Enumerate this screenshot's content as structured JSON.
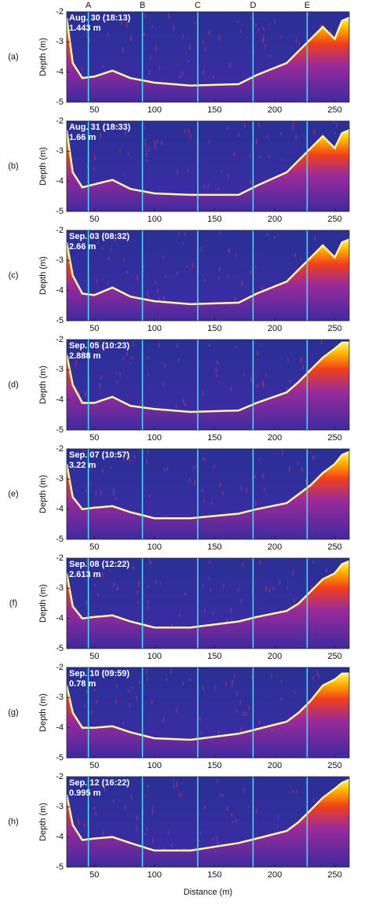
{
  "chart_data": [
    {
      "type": "echogram",
      "panel_label": "(a)",
      "annotations": [
        "Aug. 30 (18:13)",
        "1.443 m"
      ],
      "ylabel": "Depth (m)",
      "xlim": [
        27,
        262
      ],
      "ylim": [
        -5,
        -2
      ],
      "yticks": [
        -5,
        -4,
        -3,
        -2
      ],
      "xticks": [
        50,
        100,
        150,
        200,
        250
      ],
      "vlines": [
        45,
        90,
        136,
        182,
        227
      ],
      "vline_labels": [
        "A",
        "B",
        "C",
        "D",
        "E"
      ],
      "x": [
        27,
        32,
        40,
        50,
        65,
        80,
        100,
        130,
        170,
        185,
        210,
        220,
        230,
        240,
        250,
        256,
        262
      ],
      "values": [
        -2.2,
        -3.7,
        -4.2,
        -4.15,
        -3.95,
        -4.2,
        -4.35,
        -4.45,
        -4.4,
        -4.1,
        -3.7,
        -3.3,
        -2.9,
        -2.5,
        -2.9,
        -2.3,
        -2.2
      ]
    },
    {
      "type": "echogram",
      "panel_label": "(b)",
      "annotations": [
        "Aug. 31 (18:33)",
        "1.66 m"
      ],
      "ylabel": "Depth (m)",
      "xlim": [
        27,
        262
      ],
      "ylim": [
        -5,
        -2
      ],
      "yticks": [
        -5,
        -4,
        -3,
        -2
      ],
      "xticks": [
        50,
        100,
        150,
        200,
        250
      ],
      "vlines": [
        45,
        90,
        136,
        182,
        227
      ],
      "x": [
        27,
        32,
        40,
        50,
        65,
        80,
        100,
        130,
        170,
        185,
        210,
        220,
        230,
        240,
        250,
        256,
        262
      ],
      "values": [
        -2.3,
        -3.7,
        -4.2,
        -4.1,
        -3.95,
        -4.25,
        -4.4,
        -4.45,
        -4.45,
        -4.15,
        -3.7,
        -3.3,
        -2.9,
        -2.5,
        -2.9,
        -2.4,
        -2.3
      ]
    },
    {
      "type": "echogram",
      "panel_label": "(c)",
      "annotations": [
        "Sep. 03 (08:32)",
        "2.66 m"
      ],
      "ylabel": "Depth (m)",
      "xlim": [
        27,
        262
      ],
      "ylim": [
        -5,
        -2
      ],
      "yticks": [
        -5,
        -4,
        -3,
        -2
      ],
      "xticks": [
        50,
        100,
        150,
        200,
        250
      ],
      "vlines": [
        45,
        90,
        136,
        182,
        227
      ],
      "x": [
        27,
        32,
        40,
        50,
        65,
        80,
        100,
        130,
        170,
        185,
        210,
        220,
        230,
        240,
        250,
        256,
        262
      ],
      "values": [
        -2.4,
        -3.5,
        -4.1,
        -4.15,
        -3.9,
        -4.2,
        -4.35,
        -4.45,
        -4.4,
        -4.1,
        -3.7,
        -3.3,
        -2.9,
        -2.5,
        -2.9,
        -2.4,
        -2.3
      ]
    },
    {
      "type": "echogram",
      "panel_label": "(d)",
      "annotations": [
        "Sep. 05 (10:23)",
        "2.888 m"
      ],
      "ylabel": "Depth (m)",
      "xlim": [
        27,
        262
      ],
      "ylim": [
        -5,
        -2
      ],
      "yticks": [
        -5,
        -4,
        -3,
        -2
      ],
      "xticks": [
        50,
        100,
        150,
        200,
        250
      ],
      "vlines": [
        45,
        90,
        136,
        182,
        227
      ],
      "x": [
        27,
        32,
        40,
        50,
        65,
        80,
        100,
        130,
        170,
        185,
        210,
        220,
        230,
        240,
        250,
        256,
        262
      ],
      "values": [
        -2.5,
        -3.5,
        -4.1,
        -4.1,
        -3.9,
        -4.2,
        -4.3,
        -4.4,
        -4.35,
        -4.1,
        -3.75,
        -3.4,
        -3.0,
        -2.6,
        -2.3,
        -2.1,
        -2.1
      ]
    },
    {
      "type": "echogram",
      "panel_label": "(e)",
      "annotations": [
        "Sep. 07 (10:57)",
        "3.22 m"
      ],
      "ylabel": "Depth (m)",
      "xlim": [
        27,
        262
      ],
      "ylim": [
        -5,
        -2
      ],
      "yticks": [
        -5,
        -4,
        -3,
        -2
      ],
      "xticks": [
        50,
        100,
        150,
        200,
        250
      ],
      "vlines": [
        45,
        90,
        136,
        182,
        227
      ],
      "x": [
        27,
        32,
        40,
        50,
        65,
        80,
        100,
        130,
        170,
        185,
        210,
        220,
        230,
        240,
        250,
        256,
        262
      ],
      "values": [
        -2.5,
        -3.6,
        -4.0,
        -3.95,
        -3.9,
        -4.1,
        -4.3,
        -4.3,
        -4.15,
        -4.0,
        -3.8,
        -3.5,
        -3.2,
        -2.8,
        -2.5,
        -2.2,
        -2.1
      ]
    },
    {
      "type": "echogram",
      "panel_label": "(f)",
      "annotations": [
        "Sep. 08 (12:22)",
        "2.613 m"
      ],
      "ylabel": "Depth (m)",
      "xlim": [
        27,
        262
      ],
      "ylim": [
        -5,
        -2
      ],
      "yticks": [
        -5,
        -4,
        -3,
        -2
      ],
      "xticks": [
        50,
        100,
        150,
        200,
        250
      ],
      "vlines": [
        45,
        90,
        136,
        182,
        227
      ],
      "x": [
        27,
        32,
        40,
        50,
        65,
        80,
        100,
        130,
        170,
        185,
        210,
        220,
        230,
        240,
        250,
        256,
        262
      ],
      "values": [
        -2.5,
        -3.6,
        -4.0,
        -3.95,
        -3.9,
        -4.1,
        -4.3,
        -4.3,
        -4.1,
        -3.95,
        -3.75,
        -3.5,
        -3.1,
        -2.7,
        -2.5,
        -2.2,
        -2.1
      ]
    },
    {
      "type": "echogram",
      "panel_label": "(g)",
      "annotations": [
        "Sep. 10 (09:59)",
        "0.78 m"
      ],
      "ylabel": "Depth (m)",
      "xlim": [
        27,
        262
      ],
      "ylim": [
        -5,
        -2
      ],
      "yticks": [
        -5,
        -4,
        -3,
        -2
      ],
      "xticks": [
        50,
        100,
        150,
        200,
        250
      ],
      "vlines": [
        45,
        90,
        136,
        182,
        227
      ],
      "x": [
        27,
        32,
        40,
        50,
        65,
        80,
        100,
        130,
        170,
        185,
        210,
        220,
        230,
        240,
        250,
        256,
        262
      ],
      "values": [
        -2.6,
        -3.5,
        -4.0,
        -4.0,
        -3.95,
        -4.15,
        -4.35,
        -4.4,
        -4.2,
        -4.05,
        -3.8,
        -3.5,
        -3.1,
        -2.6,
        -2.4,
        -2.2,
        -2.2
      ]
    },
    {
      "type": "echogram",
      "panel_label": "(h)",
      "annotations": [
        "Sep. 12 (16:22)",
        "0.995 m"
      ],
      "ylabel": "Depth (m)",
      "xlabel": "Distance (m)",
      "xlim": [
        27,
        262
      ],
      "ylim": [
        -5,
        -2
      ],
      "yticks": [
        -5,
        -4,
        -3,
        -2
      ],
      "xticks": [
        50,
        100,
        150,
        200,
        250
      ],
      "vlines": [
        45,
        90,
        136,
        182,
        227
      ],
      "x": [
        27,
        32,
        40,
        50,
        65,
        80,
        100,
        130,
        170,
        185,
        210,
        220,
        230,
        240,
        250,
        256,
        262
      ],
      "values": [
        -2.6,
        -3.6,
        -4.1,
        -4.05,
        -4.0,
        -4.2,
        -4.45,
        -4.45,
        -4.2,
        -4.05,
        -3.8,
        -3.5,
        -3.1,
        -2.7,
        -2.4,
        -2.2,
        -2.1
      ]
    }
  ]
}
